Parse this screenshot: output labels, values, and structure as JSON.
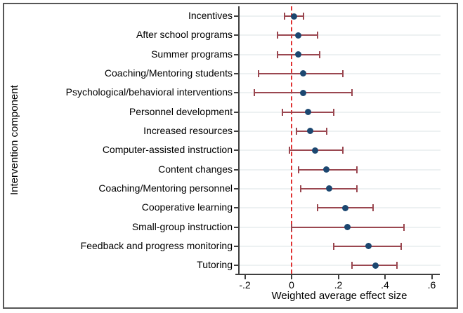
{
  "chart_data": {
    "type": "forest",
    "orientation": "horizontal",
    "xlabel": "Weighted average effect size",
    "ylabel": "Intervention component",
    "xlim": [
      -0.28,
      0.66
    ],
    "x_ticks": [
      -0.2,
      0,
      0.2,
      0.4,
      0.6
    ],
    "x_tick_labels": [
      "-.2",
      "0",
      ".2",
      ".4",
      ".6"
    ],
    "grid": "horizontal-per-category",
    "legend": "none",
    "reference_line": {
      "x": 0,
      "style": "dashed",
      "color": "#e03131"
    },
    "categories": [
      "Incentives",
      "After school programs",
      "Summer programs",
      "Coaching/Mentoring students",
      "Psychological/behavioral interventions",
      "Personnel development",
      "Increased resources",
      "Computer-assisted instruction",
      "Content changes",
      "Coaching/Mentoring personnel",
      "Cooperative learning",
      "Small-group instruction",
      "Feedback and progress monitoring",
      "Tutoring"
    ],
    "series": [
      {
        "name": "Weighted average effect size",
        "estimates": [
          0.01,
          0.03,
          0.03,
          0.05,
          0.05,
          0.07,
          0.08,
          0.1,
          0.15,
          0.16,
          0.23,
          0.24,
          0.33,
          0.36
        ],
        "ci_low": [
          -0.03,
          -0.06,
          -0.06,
          -0.14,
          -0.16,
          -0.04,
          0.02,
          -0.01,
          0.03,
          0.04,
          0.11,
          0.0,
          0.18,
          0.26
        ],
        "ci_high": [
          0.05,
          0.11,
          0.12,
          0.22,
          0.26,
          0.18,
          0.15,
          0.22,
          0.28,
          0.28,
          0.35,
          0.48,
          0.47,
          0.45
        ]
      }
    ],
    "colors": {
      "marker": "#1c4770",
      "ci_bar": "#9a4750",
      "reference": "#e03131",
      "grid": "#edf1f2",
      "axis": "#3f3f3f",
      "border": "#565656",
      "text": "#000000",
      "background": "#ffffff"
    }
  }
}
